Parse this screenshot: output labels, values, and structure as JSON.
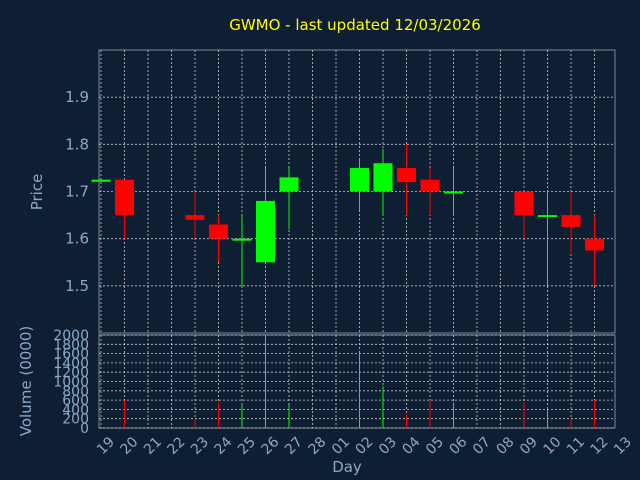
{
  "chart_data": [
    {
      "type": "candlestick",
      "title": "GWMO - last updated 12/03/2026",
      "ylabel": "Price",
      "ylim": [
        1.4,
        2.0
      ],
      "yticks": [
        "1.5",
        "1.6",
        "1.7",
        "1.8",
        "1.9"
      ],
      "grid": true,
      "x_ticks": [
        "19",
        "20",
        "21",
        "22",
        "23",
        "24",
        "25",
        "26",
        "27",
        "28",
        "01",
        "02",
        "03",
        "04",
        "05",
        "06",
        "07",
        "08",
        "09",
        "10",
        "11",
        "12",
        "13"
      ],
      "candles": [
        {
          "x": "19",
          "open": 1.725,
          "high": 1.725,
          "low": 1.725,
          "close": 1.725
        },
        {
          "x": "20",
          "open": 1.725,
          "high": 1.725,
          "low": 1.6,
          "close": 1.65
        },
        {
          "x": "23",
          "open": 1.65,
          "high": 1.7,
          "low": 1.6,
          "close": 1.64
        },
        {
          "x": "24",
          "open": 1.63,
          "high": 1.65,
          "low": 1.55,
          "close": 1.6
        },
        {
          "x": "25",
          "open": 1.6,
          "high": 1.65,
          "low": 1.5,
          "close": 1.6
        },
        {
          "x": "26",
          "open": 1.55,
          "high": 1.75,
          "low": 1.55,
          "close": 1.68
        },
        {
          "x": "27",
          "open": 1.7,
          "high": 1.75,
          "low": 1.62,
          "close": 1.73
        },
        {
          "x": "02",
          "open": 1.7,
          "high": 1.77,
          "low": 1.66,
          "close": 1.75
        },
        {
          "x": "03",
          "open": 1.7,
          "high": 1.79,
          "low": 1.65,
          "close": 1.76
        },
        {
          "x": "04",
          "open": 1.75,
          "high": 1.8,
          "low": 1.65,
          "close": 1.72
        },
        {
          "x": "05",
          "open": 1.725,
          "high": 1.75,
          "low": 1.65,
          "close": 1.7
        },
        {
          "x": "06",
          "open": 1.7,
          "high": 1.75,
          "low": 1.65,
          "close": 1.7
        },
        {
          "x": "09",
          "open": 1.7,
          "high": 1.7,
          "low": 1.6,
          "close": 1.65
        },
        {
          "x": "10",
          "open": 1.65,
          "high": 1.7,
          "low": 1.5,
          "close": 1.65
        },
        {
          "x": "11",
          "open": 1.65,
          "high": 1.7,
          "low": 1.57,
          "close": 1.625
        },
        {
          "x": "12",
          "open": 1.6,
          "high": 1.65,
          "low": 1.5,
          "close": 1.575
        }
      ],
      "colors": {
        "up": "#00ff00",
        "down": "#ff0000",
        "background": "#0f1f33",
        "grid": "#c8c8c8",
        "title": "#ffff00",
        "axis_text": "#8aa9c8"
      }
    },
    {
      "type": "bar",
      "ylabel": "Volume (0000)",
      "xlabel": "Day",
      "ylim": [
        0,
        2000
      ],
      "yticks": [
        "0",
        "200",
        "400",
        "600",
        "800",
        "1000",
        "1200",
        "1400",
        "1600",
        "1800",
        "2000"
      ],
      "categories": [
        "20",
        "23",
        "24",
        "25",
        "26",
        "27",
        "02",
        "03",
        "04",
        "05",
        "06",
        "09",
        "10",
        "11",
        "12"
      ],
      "values": [
        600,
        200,
        550,
        500,
        2000,
        500,
        1600,
        900,
        300,
        600,
        550,
        550,
        450,
        200,
        600
      ],
      "bar_colors": [
        "down",
        "down",
        "down",
        "up",
        "up",
        "up",
        "up",
        "up",
        "down",
        "down",
        "up",
        "down",
        "up",
        "down",
        "down"
      ]
    }
  ]
}
